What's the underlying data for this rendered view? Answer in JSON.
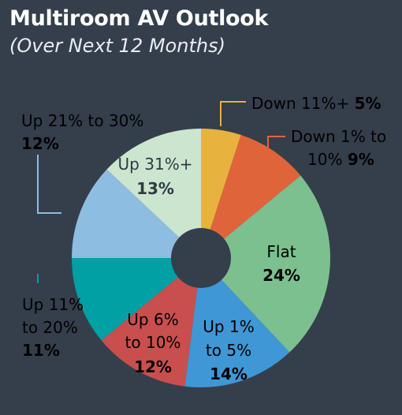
{
  "header": {
    "title": "Multiroom AV Outlook",
    "subtitle": "(Over Next 12 Months)"
  },
  "colors": {
    "background": "#353e4b",
    "hole": "#353e4b"
  },
  "chart_data": {
    "type": "pie",
    "donut": true,
    "title": "Multiroom AV Outlook",
    "subtitle": "(Over Next 12 Months)",
    "unit": "%",
    "start_angle_deg": 0,
    "direction": "clockwise",
    "slices": [
      {
        "label": "Down 11%+",
        "value": 5,
        "value_text": "5%",
        "color": "#e8b23e"
      },
      {
        "label": "Down 1% to 10%",
        "value": 9,
        "value_text": "9%",
        "color": "#e0643a"
      },
      {
        "label": "Flat",
        "value": 24,
        "value_text": "24%",
        "color": "#7cc08f"
      },
      {
        "label": "Up 1% to 5%",
        "value": 14,
        "value_text": "14%",
        "color": "#3f97d6"
      },
      {
        "label": "Up 6% to 10%",
        "value": 12,
        "value_text": "12%",
        "color": "#c84f4d"
      },
      {
        "label": "Up 11% to 20%",
        "value": 11,
        "value_text": "11%",
        "color": "#00a0a4"
      },
      {
        "label": "Up 21% to 30%",
        "value": 12,
        "value_text": "12%",
        "color": "#8dbde0"
      },
      {
        "label": "Up 31%+",
        "value": 13,
        "value_text": "13%",
        "color": "#cce5cf"
      }
    ]
  },
  "labels": {
    "down11": {
      "name": "Down 11%+",
      "value": "5%"
    },
    "down1": {
      "line1": "Down 1% to",
      "line2": "10%",
      "value": "9%"
    },
    "flat": {
      "name": "Flat",
      "value": "24%"
    },
    "up1": {
      "line1": "Up 1%",
      "line2": "to 5%",
      "value": "14%"
    },
    "up6": {
      "line1": "Up 6%",
      "line2": "to 10%",
      "value": "12%"
    },
    "up11": {
      "line1": "Up 11%",
      "line2": "to 20%",
      "value": "11%"
    },
    "up21": {
      "name": "Up 21% to 30%",
      "value": "12%"
    },
    "up31": {
      "name": "Up 31%+",
      "value": "13%"
    }
  }
}
